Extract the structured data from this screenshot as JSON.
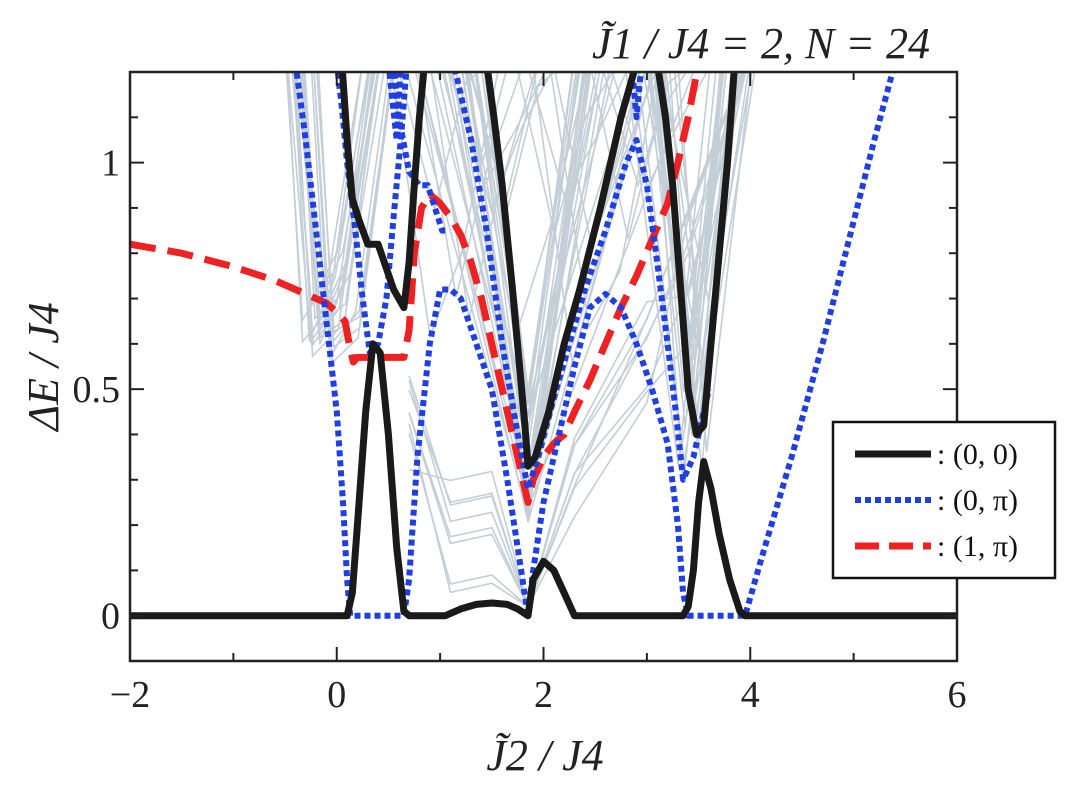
{
  "chart_data": {
    "type": "line",
    "title": "J̃1 / J4 = 2, N = 24",
    "xlabel": "J̃2 / J4",
    "ylabel": "ΔE / J4",
    "xlim": [
      -2,
      6
    ],
    "ylim": [
      -0.1,
      1.2
    ],
    "xticks": [
      -2,
      0,
      2,
      4,
      6
    ],
    "xtick_labels": [
      "−2",
      "0",
      "2",
      "4",
      "6"
    ],
    "yticks": [
      0,
      0.5,
      1
    ],
    "ytick_labels": [
      "0",
      "0.5",
      "1"
    ],
    "grid": false,
    "legend_position": "right",
    "legend": [
      {
        "label": ": (0, 0)",
        "series": "s00"
      },
      {
        "label": ": (0, π)",
        "series": "s0pi"
      },
      {
        "label": ": (1, π)",
        "series": "s1pi"
      }
    ],
    "colors": {
      "s00": "#1a1a1a",
      "s0pi": "#1f3fe0",
      "s1pi": "#ee2222",
      "background": "#c3ced6"
    },
    "series": [
      {
        "id": "s00",
        "name": "(0, 0)",
        "style": "solid",
        "segments": [
          [
            [
              -2,
              0
            ],
            [
              0.1,
              0
            ],
            [
              0.15,
              0.05
            ],
            [
              0.2,
              0.2
            ],
            [
              0.28,
              0.45
            ],
            [
              0.35,
              0.6
            ],
            [
              0.42,
              0.58
            ],
            [
              0.5,
              0.4
            ],
            [
              0.58,
              0.15
            ],
            [
              0.65,
              0.01
            ],
            [
              0.7,
              0
            ],
            [
              1.05,
              0
            ],
            [
              1.2,
              0.015
            ],
            [
              1.35,
              0.025
            ],
            [
              1.5,
              0.028
            ],
            [
              1.65,
              0.025
            ],
            [
              1.75,
              0.015
            ],
            [
              1.85,
              0
            ],
            [
              1.9,
              0.08
            ],
            [
              2.0,
              0.12
            ],
            [
              2.1,
              0.1
            ],
            [
              2.2,
              0.05
            ],
            [
              2.3,
              0
            ],
            [
              3.35,
              0
            ],
            [
              3.4,
              0.02
            ],
            [
              3.45,
              0.1
            ],
            [
              3.5,
              0.25
            ],
            [
              3.55,
              0.34
            ],
            [
              3.62,
              0.28
            ],
            [
              3.7,
              0.18
            ],
            [
              3.8,
              0.08
            ],
            [
              3.9,
              0.01
            ],
            [
              3.95,
              0
            ],
            [
              6,
              0
            ]
          ],
          [
            [
              0.05,
              1.22
            ],
            [
              0.1,
              1.05
            ],
            [
              0.15,
              0.92
            ],
            [
              0.22,
              0.87
            ],
            [
              0.3,
              0.82
            ],
            [
              0.4,
              0.82
            ],
            [
              0.55,
              0.72
            ],
            [
              0.65,
              0.68
            ],
            [
              0.7,
              0.78
            ],
            [
              0.75,
              0.95
            ],
            [
              0.8,
              1.1
            ],
            [
              0.85,
              1.22
            ]
          ],
          [
            [
              1.45,
              1.22
            ],
            [
              1.52,
              1.1
            ],
            [
              1.6,
              0.95
            ],
            [
              1.7,
              0.72
            ],
            [
              1.78,
              0.52
            ],
            [
              1.82,
              0.42
            ],
            [
              1.85,
              0.33
            ],
            [
              1.92,
              0.35
            ],
            [
              2.05,
              0.45
            ],
            [
              2.2,
              0.6
            ],
            [
              2.35,
              0.72
            ],
            [
              2.55,
              0.9
            ],
            [
              2.75,
              1.1
            ],
            [
              2.9,
              1.22
            ]
          ],
          [
            [
              3.1,
              1.22
            ],
            [
              3.18,
              1.1
            ],
            [
              3.25,
              0.95
            ],
            [
              3.3,
              0.8
            ],
            [
              3.35,
              0.65
            ],
            [
              3.4,
              0.5
            ],
            [
              3.48,
              0.4
            ],
            [
              3.55,
              0.42
            ],
            [
              3.62,
              0.6
            ],
            [
              3.7,
              0.8
            ],
            [
              3.78,
              1.0
            ],
            [
              3.85,
              1.22
            ]
          ]
        ]
      },
      {
        "id": "s0pi",
        "name": "(0, π)",
        "style": "dotted",
        "segments": [
          [
            [
              -0.4,
              1.22
            ],
            [
              -0.3,
              1.05
            ],
            [
              -0.2,
              0.85
            ],
            [
              -0.1,
              0.65
            ],
            [
              0,
              0.45
            ],
            [
              0.06,
              0.25
            ],
            [
              0.1,
              0.08
            ],
            [
              0.13,
              0
            ],
            [
              0.65,
              0
            ],
            [
              0.7,
              0.08
            ],
            [
              0.78,
              0.35
            ],
            [
              0.9,
              0.6
            ],
            [
              1.0,
              0.72
            ],
            [
              1.1,
              0.72
            ],
            [
              1.2,
              0.7
            ],
            [
              1.35,
              0.6
            ],
            [
              1.5,
              0.5
            ],
            [
              1.65,
              0.3
            ],
            [
              1.75,
              0.15
            ],
            [
              1.85,
              0
            ],
            [
              1.9,
              0.1
            ],
            [
              2.0,
              0.25
            ],
            [
              2.15,
              0.4
            ],
            [
              2.3,
              0.55
            ],
            [
              2.45,
              0.68
            ],
            [
              2.6,
              0.71
            ],
            [
              2.75,
              0.68
            ],
            [
              2.9,
              0.6
            ],
            [
              3.05,
              0.5
            ],
            [
              3.2,
              0.38
            ],
            [
              3.3,
              0.2
            ],
            [
              3.35,
              0.05
            ],
            [
              3.4,
              0
            ],
            [
              3.95,
              0
            ],
            [
              4.1,
              0.12
            ],
            [
              4.4,
              0.35
            ],
            [
              4.7,
              0.6
            ],
            [
              5.0,
              0.87
            ],
            [
              5.2,
              1.05
            ],
            [
              5.4,
              1.22
            ]
          ],
          [
            [
              0,
              1.22
            ],
            [
              0.05,
              1.12
            ],
            [
              0.1,
              1.0
            ],
            [
              0.18,
              0.85
            ],
            [
              0.25,
              0.7
            ],
            [
              0.32,
              0.58
            ],
            [
              0.4,
              0.6
            ],
            [
              0.48,
              0.7
            ],
            [
              0.55,
              0.88
            ],
            [
              0.62,
              1.05
            ],
            [
              0.68,
              1.22
            ]
          ],
          [
            [
              0.55,
              1.22
            ],
            [
              0.6,
              1.1
            ],
            [
              0.7,
              0.98
            ],
            [
              0.8,
              0.95
            ],
            [
              0.88,
              0.95
            ],
            [
              0.95,
              0.9
            ],
            [
              1.02,
              0.85
            ],
            [
              1.08,
              0.85
            ]
          ],
          [
            [
              1.05,
              1.22
            ],
            [
              1.15,
              1.2
            ],
            [
              1.3,
              1.05
            ],
            [
              1.45,
              0.85
            ],
            [
              1.6,
              0.6
            ],
            [
              1.75,
              0.4
            ],
            [
              1.85,
              0.28
            ],
            [
              1.95,
              0.35
            ],
            [
              2.1,
              0.48
            ],
            [
              2.25,
              0.6
            ],
            [
              2.4,
              0.72
            ],
            [
              2.6,
              0.85
            ],
            [
              2.8,
              1.0
            ],
            [
              2.9,
              1.05
            ],
            [
              3.0,
              0.95
            ],
            [
              3.1,
              0.78
            ],
            [
              3.2,
              0.6
            ],
            [
              3.28,
              0.45
            ],
            [
              3.35,
              0.3
            ],
            [
              3.45,
              0.35
            ],
            [
              3.5,
              0.4
            ],
            [
              3.6,
              0.5
            ]
          ],
          [
            [
              0.5,
              1.22
            ],
            [
              0.58,
              1.05
            ],
            [
              0.62,
              1.22
            ]
          ],
          [
            [
              2.85,
              1.22
            ],
            [
              2.9,
              1.1
            ],
            [
              2.95,
              1.22
            ]
          ]
        ]
      },
      {
        "id": "s1pi",
        "name": "(1, π)",
        "style": "dashed",
        "segments": [
          [
            [
              -2,
              0.82
            ],
            [
              -1.5,
              0.8
            ],
            [
              -1.0,
              0.77
            ],
            [
              -0.6,
              0.74
            ],
            [
              -0.3,
              0.71
            ],
            [
              -0.1,
              0.69
            ],
            [
              0,
              0.67
            ],
            [
              0.08,
              0.65
            ],
            [
              0.12,
              0.6
            ],
            [
              0.16,
              0.56
            ],
            [
              0.2,
              0.57
            ],
            [
              0.4,
              0.57
            ],
            [
              0.55,
              0.57
            ],
            [
              0.65,
              0.57
            ],
            [
              0.7,
              0.63
            ],
            [
              0.75,
              0.8
            ],
            [
              0.82,
              0.9
            ],
            [
              0.9,
              0.93
            ],
            [
              1.0,
              0.91
            ],
            [
              1.1,
              0.88
            ],
            [
              1.2,
              0.84
            ],
            [
              1.3,
              0.78
            ],
            [
              1.4,
              0.7
            ],
            [
              1.5,
              0.6
            ],
            [
              1.6,
              0.5
            ],
            [
              1.7,
              0.4
            ],
            [
              1.8,
              0.3
            ],
            [
              1.85,
              0.25
            ],
            [
              1.9,
              0.3
            ],
            [
              2.0,
              0.35
            ],
            [
              2.1,
              0.38
            ],
            [
              2.2,
              0.4
            ],
            [
              2.3,
              0.45
            ],
            [
              2.45,
              0.52
            ],
            [
              2.6,
              0.6
            ],
            [
              2.75,
              0.68
            ],
            [
              2.9,
              0.75
            ],
            [
              3.05,
              0.83
            ],
            [
              3.2,
              0.91
            ],
            [
              3.3,
              1.0
            ],
            [
              3.4,
              1.1
            ],
            [
              3.5,
              1.22
            ]
          ]
        ]
      }
    ]
  }
}
